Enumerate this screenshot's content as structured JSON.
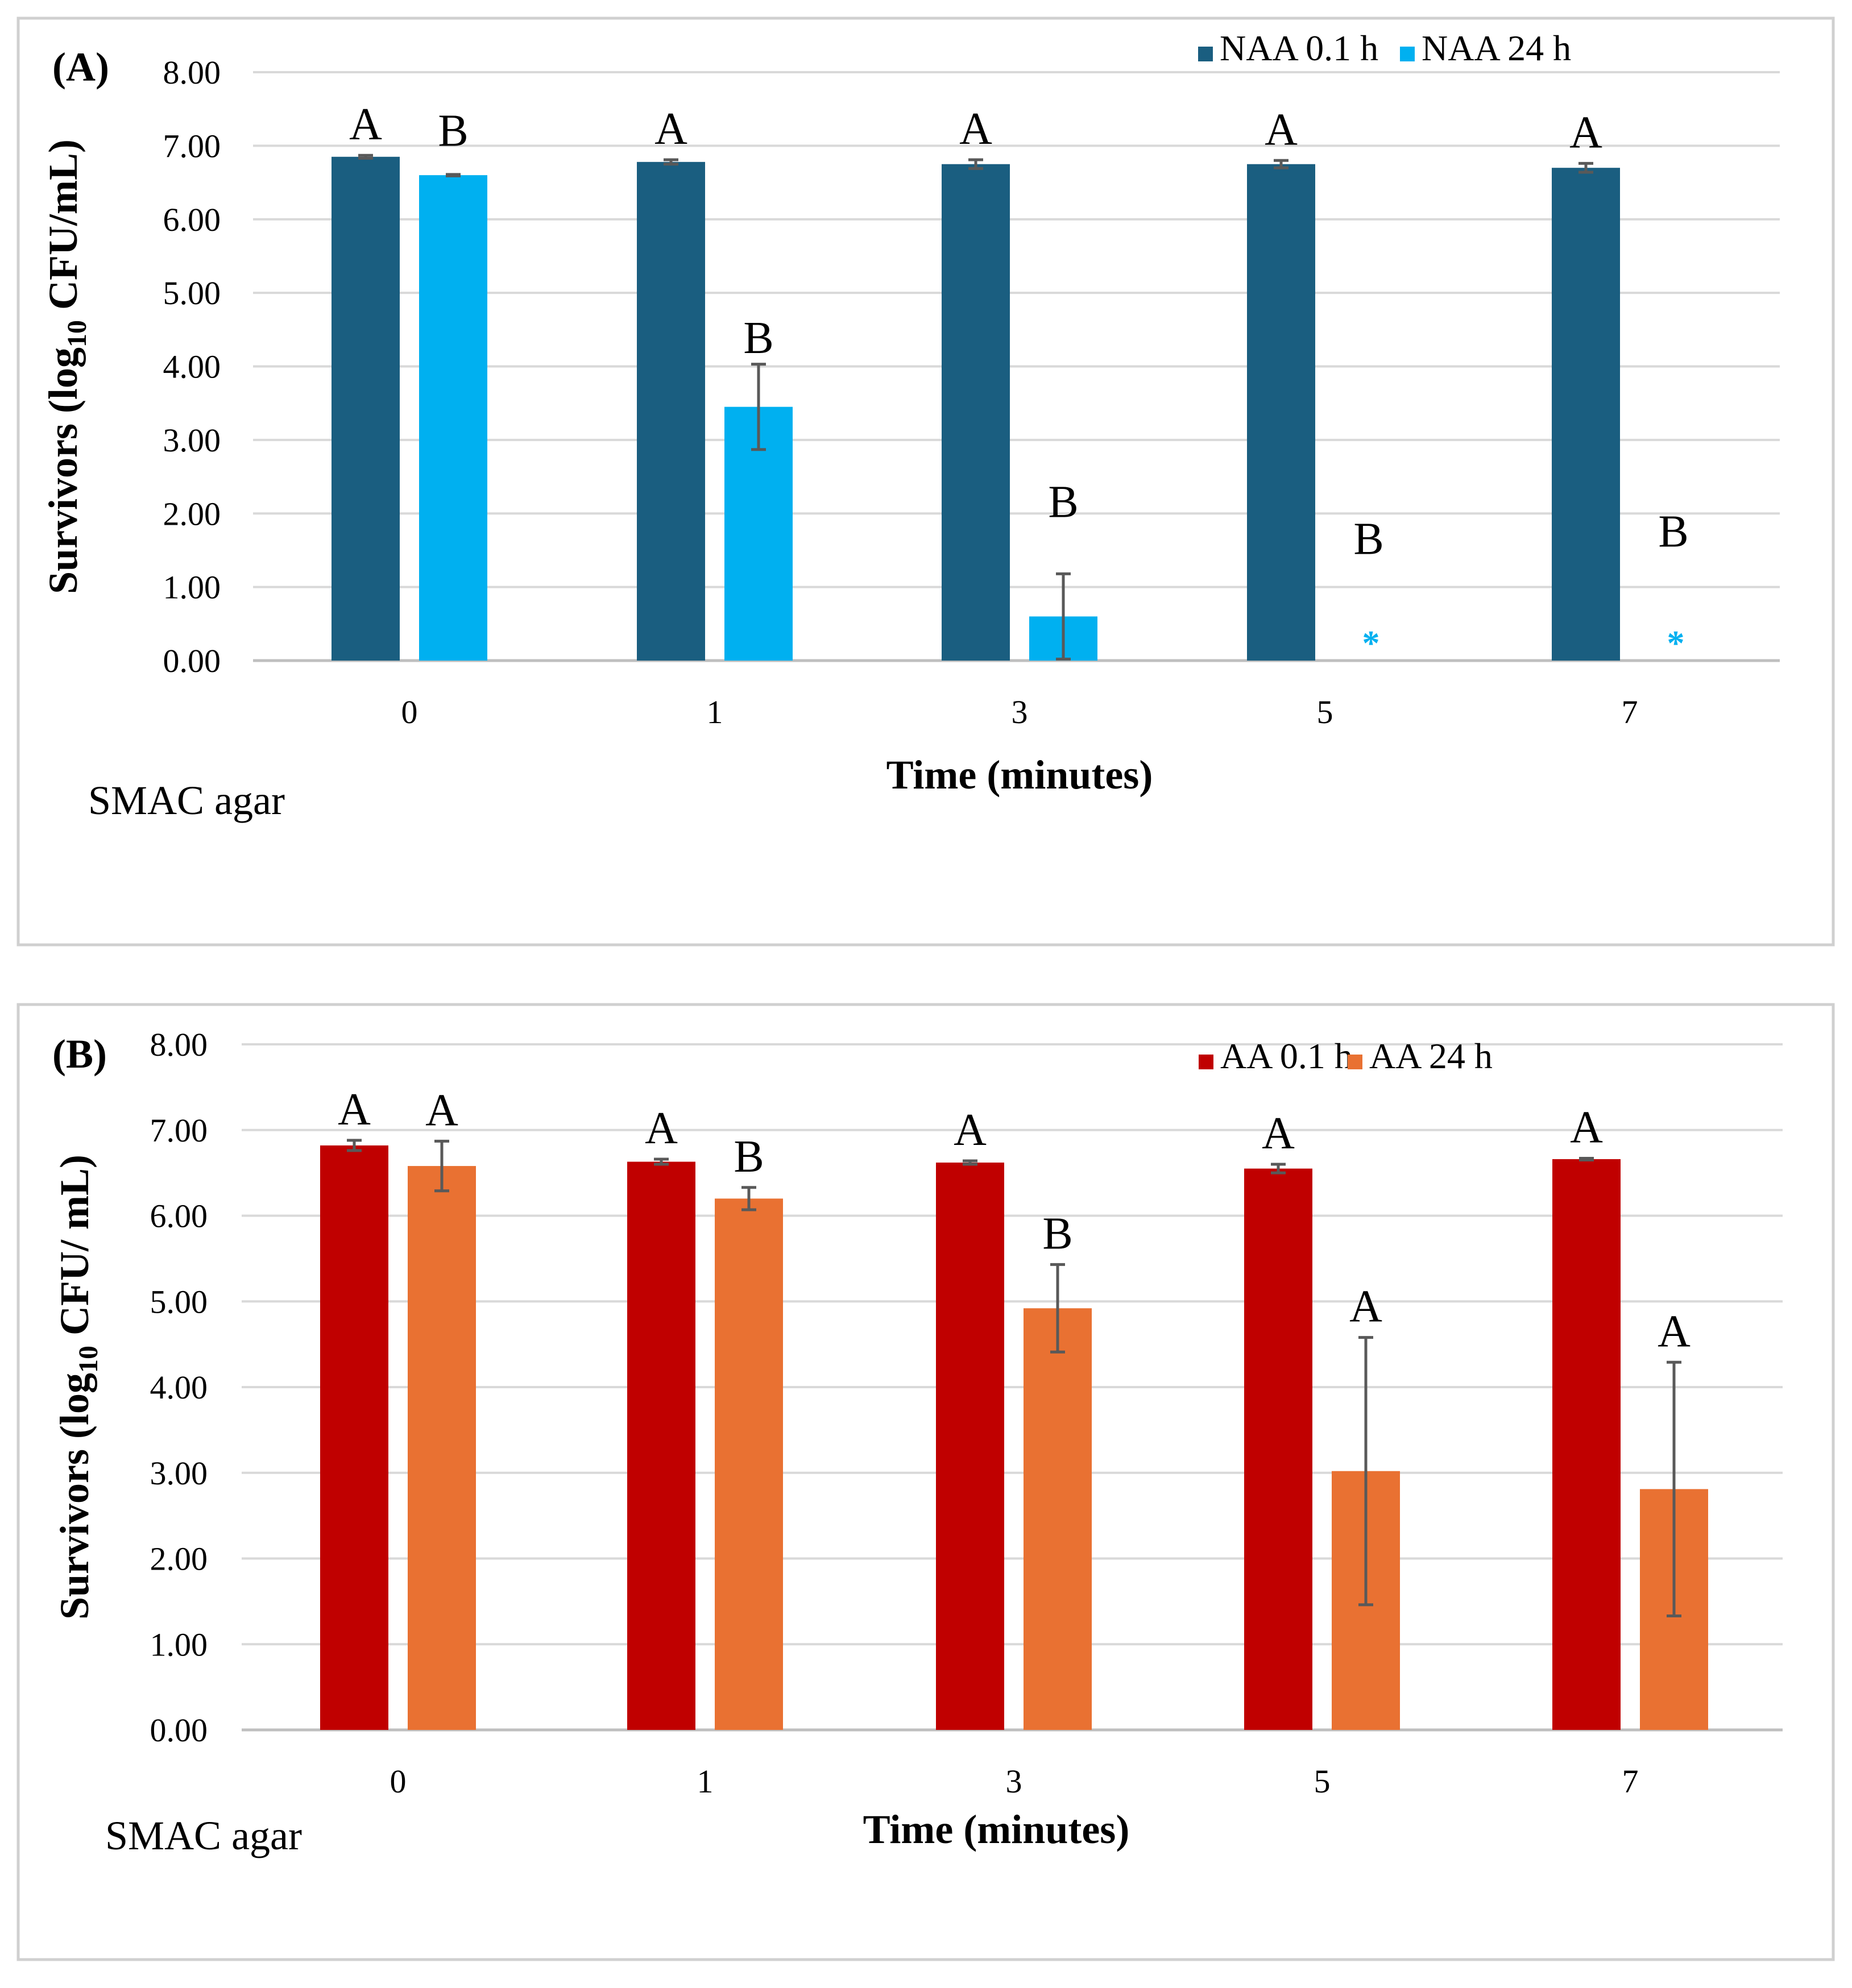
{
  "chart_data": [
    {
      "panel_label": "(A)",
      "type": "bar",
      "title": "",
      "xlabel": "Time (minutes)",
      "ylabel_parts": {
        "before": "Survivors (log",
        "sub": "10",
        "after": " CFU/mL)"
      },
      "ylim": [
        0,
        8
      ],
      "yticks": [
        "0.00",
        "1.00",
        "2.00",
        "3.00",
        "4.00",
        "5.00",
        "6.00",
        "7.00",
        "8.00"
      ],
      "categories": [
        "0",
        "1",
        "3",
        "5",
        "7"
      ],
      "grid": true,
      "legend_position": "top-right",
      "footnote": "SMAC agar",
      "series": [
        {
          "name": "NAA 0.1 h",
          "color": "#1a5e80",
          "values": [
            6.85,
            6.78,
            6.75,
            6.75,
            6.7
          ],
          "errors": [
            0.02,
            0.03,
            0.06,
            0.05,
            0.06
          ],
          "letters": [
            "A",
            "A",
            "A",
            "A",
            "A"
          ]
        },
        {
          "name": "NAA 24 h",
          "color": "#00b0f0",
          "values": [
            6.6,
            3.45,
            0.6,
            0.0,
            0.0
          ],
          "errors": [
            0.01,
            0.58,
            0.58,
            0.0,
            0.0
          ],
          "letters": [
            "B",
            "B",
            "B",
            "B",
            "B"
          ],
          "letter_y": [
            7.0,
            4.18,
            1.95,
            1.45,
            1.55
          ],
          "below_detection_marker": [
            false,
            false,
            false,
            true,
            true
          ],
          "marker_text": "*"
        }
      ]
    },
    {
      "panel_label": "(B)",
      "type": "bar",
      "title": "",
      "xlabel": "Time (minutes)",
      "ylabel_parts": {
        "before": "Survivors (log",
        "sub": "10",
        "after": " CFU/ mL)"
      },
      "ylim": [
        0,
        8
      ],
      "yticks": [
        "0.00",
        "1.00",
        "2.00",
        "3.00",
        "4.00",
        "5.00",
        "6.00",
        "7.00",
        "8.00"
      ],
      "categories": [
        "0",
        "1",
        "3",
        "5",
        "7"
      ],
      "grid": true,
      "legend_position": "top-right",
      "footnote": "SMAC agar",
      "series": [
        {
          "name": "AA 0.1 h",
          "color": "#c00000",
          "values": [
            6.82,
            6.63,
            6.62,
            6.55,
            6.66
          ],
          "errors": [
            0.06,
            0.03,
            0.02,
            0.05,
            0.01
          ],
          "letters": [
            "A",
            "A",
            "A",
            "A",
            "A"
          ]
        },
        {
          "name": "AA 24 h",
          "color": "#e97132",
          "values": [
            6.58,
            6.2,
            4.92,
            3.02,
            2.81
          ],
          "errors": [
            0.29,
            0.13,
            0.51,
            1.56,
            1.48
          ],
          "letters": [
            "A",
            "B",
            "B",
            "A",
            "A"
          ]
        }
      ]
    }
  ]
}
